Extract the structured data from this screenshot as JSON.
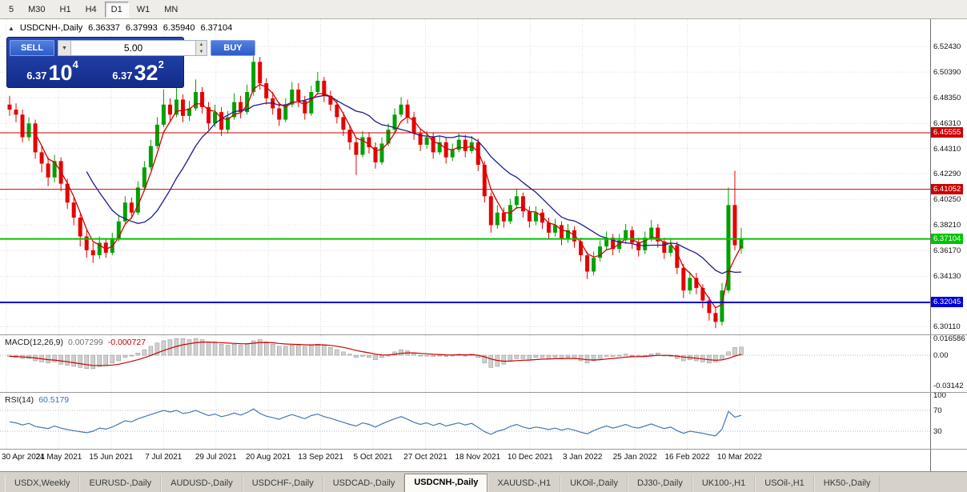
{
  "toolbar": {
    "timeframes": [
      "5",
      "M30",
      "H1",
      "H4",
      "D1",
      "W1",
      "MN"
    ],
    "active": "D1"
  },
  "quote_line": {
    "collapse_icon": "▲",
    "symbol": "USDCNH-,Daily",
    "open": "6.36337",
    "high": "6.37993",
    "low": "6.35940",
    "close": "6.37104"
  },
  "trade_panel": {
    "sell_label": "SELL",
    "buy_label": "BUY",
    "volume": "5.00",
    "bid": {
      "big_figure": "6.37",
      "pips": "10",
      "point": "4"
    },
    "ask": {
      "big_figure": "6.37",
      "pips": "32",
      "point": "2"
    }
  },
  "price_axis": {
    "ticks": [
      "6.52430",
      "6.50390",
      "6.48350",
      "6.46310",
      "6.44310",
      "6.42290",
      "6.40250",
      "6.38210",
      "6.36170",
      "6.34130",
      "6.32090",
      "6.30110"
    ]
  },
  "hlines": [
    {
      "price": 6.45555,
      "label": "6.45555",
      "color": "#cc0000",
      "width": 1
    },
    {
      "price": 6.41052,
      "label": "6.41052",
      "color": "#cc0000",
      "width": 1
    },
    {
      "price": 6.37104,
      "label": "6.37104",
      "color": "#00c400",
      "width": 2
    },
    {
      "price": 6.32045,
      "label": "6.32045",
      "color": "#0000d8",
      "width": 2
    }
  ],
  "indicators": {
    "macd": {
      "label": "MACD(12,26,9)",
      "value_main": "0.007299",
      "value_signal": "-0.000727",
      "axis_ticks": [
        "0.016586",
        "0.00",
        "-0.03142"
      ]
    },
    "rsi": {
      "label": "RSI(14)",
      "value": "60.5179",
      "axis_ticks": [
        "100",
        "70",
        "30"
      ],
      "levels": [
        70,
        30
      ]
    }
  },
  "date_axis": [
    "30 Apr 2021",
    "24 May 2021",
    "15 Jun 2021",
    "7 Jul 2021",
    "29 Jul 2021",
    "20 Aug 2021",
    "13 Sep 2021",
    "5 Oct 2021",
    "27 Oct 2021",
    "18 Nov 2021",
    "10 Dec 2021",
    "3 Jan 2022",
    "25 Jan 2022",
    "16 Feb 2022",
    "10 Mar 2022"
  ],
  "bottom_tabs": {
    "items": [
      "USDX,Weekly",
      "EURUSD-,Daily",
      "AUDUSD-,Daily",
      "USDCHF-,Daily",
      "USDCAD-,Daily",
      "USDCNH-,Daily",
      "XAUUSD-,H1",
      "UKOil-,Daily",
      "DJ30-,Daily",
      "UK100-,H1",
      "USOil-,H1",
      "HK50-,Daily"
    ],
    "active": "USDCNH-,Daily"
  },
  "colors": {
    "up": "#00a000",
    "down": "#e60000",
    "ma_fast": "#d40000",
    "ma_slow": "#1c1c8e",
    "macd_hist_fill": "#d0d0d0",
    "macd_hist_stroke": "#8d8d8d",
    "macd_signal": "#cc0000",
    "rsi_line": "#4577b5",
    "grid": "#dcdcdc",
    "level": "#b4b4b4"
  },
  "chart_data": [
    {
      "type": "candlestick",
      "title": "USDCNH-,Daily",
      "x_labels": [
        "30 Apr 2021",
        "24 May 2021",
        "15 Jun 2021",
        "7 Jul 2021",
        "29 Jul 2021",
        "20 Aug 2021",
        "13 Sep 2021",
        "5 Oct 2021",
        "27 Oct 2021",
        "18 Nov 2021",
        "10 Dec 2021",
        "3 Jan 2022",
        "25 Jan 2022",
        "16 Feb 2022",
        "10 Mar 2022"
      ],
      "ylim": [
        6.295,
        6.546
      ],
      "ma_fast_period": 5,
      "ma_slow_period": 13,
      "ohlc": [
        [
          6.478,
          6.485,
          6.469,
          6.474
        ],
        [
          6.474,
          6.479,
          6.464,
          6.47
        ],
        [
          6.47,
          6.474,
          6.448,
          6.452
        ],
        [
          6.452,
          6.468,
          6.449,
          6.463
        ],
        [
          6.463,
          6.466,
          6.435,
          6.44
        ],
        [
          6.44,
          6.445,
          6.424,
          6.431
        ],
        [
          6.431,
          6.436,
          6.413,
          6.42
        ],
        [
          6.42,
          6.438,
          6.416,
          6.433
        ],
        [
          6.433,
          6.436,
          6.409,
          6.415
        ],
        [
          6.415,
          6.419,
          6.395,
          6.4
        ],
        [
          6.4,
          6.404,
          6.382,
          6.388
        ],
        [
          6.388,
          6.391,
          6.365,
          6.373
        ],
        [
          6.373,
          6.378,
          6.356,
          6.362
        ],
        [
          6.362,
          6.368,
          6.352,
          6.358
        ],
        [
          6.358,
          6.373,
          6.355,
          6.368
        ],
        [
          6.368,
          6.371,
          6.356,
          6.36
        ],
        [
          6.36,
          6.376,
          6.358,
          6.371
        ],
        [
          6.371,
          6.39,
          6.369,
          6.385
        ],
        [
          6.385,
          6.405,
          6.383,
          6.4
        ],
        [
          6.4,
          6.404,
          6.387,
          6.392
        ],
        [
          6.392,
          6.417,
          6.39,
          6.412
        ],
        [
          6.412,
          6.433,
          6.41,
          6.428
        ],
        [
          6.428,
          6.45,
          6.426,
          6.445
        ],
        [
          6.445,
          6.468,
          6.443,
          6.462
        ],
        [
          6.462,
          6.49,
          6.46,
          6.478
        ],
        [
          6.478,
          6.483,
          6.465,
          6.47
        ],
        [
          6.47,
          6.495,
          6.468,
          6.482
        ],
        [
          6.482,
          6.486,
          6.464,
          6.469
        ],
        [
          6.469,
          6.481,
          6.465,
          6.475
        ],
        [
          6.475,
          6.498,
          6.473,
          6.488
        ],
        [
          6.488,
          6.492,
          6.471,
          6.476
        ],
        [
          6.476,
          6.48,
          6.458,
          6.463
        ],
        [
          6.463,
          6.478,
          6.46,
          6.472
        ],
        [
          6.472,
          6.476,
          6.453,
          6.458
        ],
        [
          6.458,
          6.473,
          6.455,
          6.468
        ],
        [
          6.468,
          6.487,
          6.466,
          6.48
        ],
        [
          6.48,
          6.485,
          6.467,
          6.472
        ],
        [
          6.472,
          6.494,
          6.47,
          6.488
        ],
        [
          6.488,
          6.5243,
          6.485,
          6.512
        ],
        [
          6.512,
          6.516,
          6.49,
          6.495
        ],
        [
          6.495,
          6.499,
          6.478,
          6.483
        ],
        [
          6.483,
          6.488,
          6.47,
          6.475
        ],
        [
          6.475,
          6.48,
          6.461,
          6.466
        ],
        [
          6.466,
          6.483,
          6.464,
          6.478
        ],
        [
          6.478,
          6.496,
          6.476,
          6.49
        ],
        [
          6.49,
          6.495,
          6.476,
          6.481
        ],
        [
          6.481,
          6.485,
          6.466,
          6.471
        ],
        [
          6.471,
          6.493,
          6.469,
          6.488
        ],
        [
          6.488,
          6.504,
          6.486,
          6.497
        ],
        [
          6.497,
          6.5,
          6.48,
          6.485
        ],
        [
          6.485,
          6.489,
          6.473,
          6.478
        ],
        [
          6.478,
          6.482,
          6.463,
          6.468
        ],
        [
          6.468,
          6.472,
          6.453,
          6.458
        ],
        [
          6.458,
          6.462,
          6.442,
          6.448
        ],
        [
          6.448,
          6.452,
          6.422,
          6.438
        ],
        [
          6.438,
          6.457,
          6.436,
          6.452
        ],
        [
          6.452,
          6.456,
          6.439,
          6.444
        ],
        [
          6.444,
          6.448,
          6.427,
          6.432
        ],
        [
          6.432,
          6.452,
          6.43,
          6.447
        ],
        [
          6.447,
          6.463,
          6.445,
          6.458
        ],
        [
          6.458,
          6.475,
          6.456,
          6.47
        ],
        [
          6.47,
          6.484,
          6.468,
          6.478
        ],
        [
          6.478,
          6.482,
          6.463,
          6.468
        ],
        [
          6.468,
          6.472,
          6.45,
          6.455
        ],
        [
          6.455,
          6.459,
          6.441,
          6.446
        ],
        [
          6.446,
          6.457,
          6.443,
          6.452
        ],
        [
          6.452,
          6.456,
          6.435,
          6.44
        ],
        [
          6.44,
          6.453,
          6.438,
          6.448
        ],
        [
          6.448,
          6.452,
          6.431,
          6.436
        ],
        [
          6.436,
          6.447,
          6.433,
          6.442
        ],
        [
          6.442,
          6.455,
          6.44,
          6.45
        ],
        [
          6.45,
          6.454,
          6.436,
          6.441
        ],
        [
          6.441,
          6.453,
          6.439,
          6.448
        ],
        [
          6.448,
          6.451,
          6.425,
          6.43
        ],
        [
          6.43,
          6.433,
          6.4,
          6.405
        ],
        [
          6.405,
          6.408,
          6.376,
          6.382
        ],
        [
          6.382,
          6.398,
          6.379,
          6.392
        ],
        [
          6.392,
          6.396,
          6.38,
          6.385
        ],
        [
          6.385,
          6.403,
          6.383,
          6.398
        ],
        [
          6.398,
          6.411,
          6.395,
          6.405
        ],
        [
          6.405,
          6.408,
          6.388,
          6.393
        ],
        [
          6.393,
          6.397,
          6.38,
          6.385
        ],
        [
          6.385,
          6.397,
          6.382,
          6.392
        ],
        [
          6.392,
          6.395,
          6.379,
          6.384
        ],
        [
          6.384,
          6.388,
          6.371,
          6.376
        ],
        [
          6.376,
          6.387,
          6.373,
          6.382
        ],
        [
          6.382,
          6.385,
          6.366,
          6.371
        ],
        [
          6.371,
          6.383,
          6.368,
          6.378
        ],
        [
          6.378,
          6.381,
          6.364,
          6.369
        ],
        [
          6.369,
          6.372,
          6.353,
          6.358
        ],
        [
          6.358,
          6.361,
          6.339,
          6.345
        ],
        [
          6.345,
          6.361,
          6.342,
          6.356
        ],
        [
          6.356,
          6.37,
          6.353,
          6.365
        ],
        [
          6.365,
          6.377,
          6.362,
          6.372
        ],
        [
          6.372,
          6.375,
          6.358,
          6.363
        ],
        [
          6.363,
          6.375,
          6.36,
          6.37
        ],
        [
          6.37,
          6.383,
          6.367,
          6.378
        ],
        [
          6.378,
          6.381,
          6.363,
          6.368
        ],
        [
          6.368,
          6.372,
          6.357,
          6.362
        ],
        [
          6.362,
          6.377,
          6.359,
          6.372
        ],
        [
          6.372,
          6.386,
          6.369,
          6.38
        ],
        [
          6.38,
          6.383,
          6.364,
          6.369
        ],
        [
          6.369,
          6.372,
          6.355,
          6.36
        ],
        [
          6.36,
          6.371,
          6.357,
          6.366
        ],
        [
          6.366,
          6.369,
          6.343,
          6.348
        ],
        [
          6.348,
          6.351,
          6.324,
          6.33
        ],
        [
          6.33,
          6.345,
          6.327,
          6.34
        ],
        [
          6.34,
          6.344,
          6.327,
          6.332
        ],
        [
          6.332,
          6.335,
          6.316,
          6.322
        ],
        [
          6.322,
          6.325,
          6.306,
          6.312
        ],
        [
          6.312,
          6.316,
          6.3,
          6.305
        ],
        [
          6.305,
          6.336,
          6.302,
          6.33
        ],
        [
          6.33,
          6.412,
          6.328,
          6.398
        ],
        [
          6.398,
          6.4253,
          6.362,
          6.366
        ],
        [
          6.3634,
          6.3799,
          6.3594,
          6.371
        ]
      ]
    },
    {
      "type": "bar",
      "title": "MACD(12,26,9)",
      "ylim": [
        -0.03142,
        0.016586
      ],
      "current_main": 0.007299,
      "current_signal": -0.000727,
      "values": [
        -0.001,
        -0.002,
        -0.003,
        -0.003,
        -0.005,
        -0.006,
        -0.007,
        -0.006,
        -0.008,
        -0.009,
        -0.01,
        -0.011,
        -0.012,
        -0.012,
        -0.01,
        -0.009,
        -0.007,
        -0.005,
        -0.002,
        0.0,
        0.002,
        0.005,
        0.008,
        0.011,
        0.013,
        0.014,
        0.015,
        0.015,
        0.014,
        0.015,
        0.014,
        0.012,
        0.011,
        0.01,
        0.009,
        0.01,
        0.009,
        0.01,
        0.013,
        0.014,
        0.012,
        0.01,
        0.008,
        0.008,
        0.009,
        0.009,
        0.008,
        0.009,
        0.01,
        0.009,
        0.007,
        0.005,
        0.003,
        0.001,
        -0.002,
        -0.001,
        -0.002,
        -0.004,
        -0.002,
        0.0,
        0.003,
        0.005,
        0.004,
        0.002,
        0.0,
        0.0,
        -0.001,
        0.0,
        -0.001,
        0.0,
        0.001,
        0.0,
        0.001,
        -0.002,
        -0.007,
        -0.011,
        -0.01,
        -0.008,
        -0.005,
        -0.003,
        -0.003,
        -0.004,
        -0.002,
        -0.002,
        -0.003,
        -0.002,
        -0.003,
        -0.002,
        -0.003,
        -0.005,
        -0.007,
        -0.005,
        -0.003,
        -0.001,
        -0.001,
        0.0,
        0.001,
        0.0,
        -0.001,
        0.0,
        0.001,
        0.002,
        0.0,
        -0.001,
        -0.003,
        -0.005,
        -0.004,
        -0.005,
        -0.006,
        -0.007,
        -0.006,
        -0.003,
        0.003,
        0.007,
        0.0073
      ]
    },
    {
      "type": "line",
      "title": "RSI(14)",
      "ylim": [
        0,
        100
      ],
      "current": 60.5179,
      "levels": [
        70,
        30
      ],
      "values": [
        48,
        46,
        42,
        45,
        39,
        37,
        35,
        40,
        36,
        33,
        31,
        29,
        27,
        30,
        36,
        34,
        38,
        44,
        50,
        48,
        54,
        58,
        62,
        66,
        70,
        67,
        70,
        64,
        66,
        70,
        65,
        60,
        63,
        58,
        61,
        65,
        61,
        66,
        73,
        64,
        59,
        56,
        53,
        58,
        62,
        58,
        54,
        60,
        63,
        58,
        55,
        51,
        47,
        43,
        40,
        46,
        43,
        38,
        44,
        49,
        54,
        58,
        53,
        47,
        43,
        46,
        41,
        45,
        40,
        43,
        46,
        42,
        45,
        37,
        29,
        24,
        30,
        33,
        39,
        43,
        38,
        35,
        38,
        36,
        33,
        36,
        32,
        35,
        32,
        28,
        25,
        31,
        36,
        40,
        36,
        39,
        43,
        38,
        36,
        40,
        44,
        39,
        35,
        38,
        31,
        26,
        30,
        28,
        26,
        23,
        21,
        34,
        68,
        57,
        60.5
      ]
    }
  ]
}
